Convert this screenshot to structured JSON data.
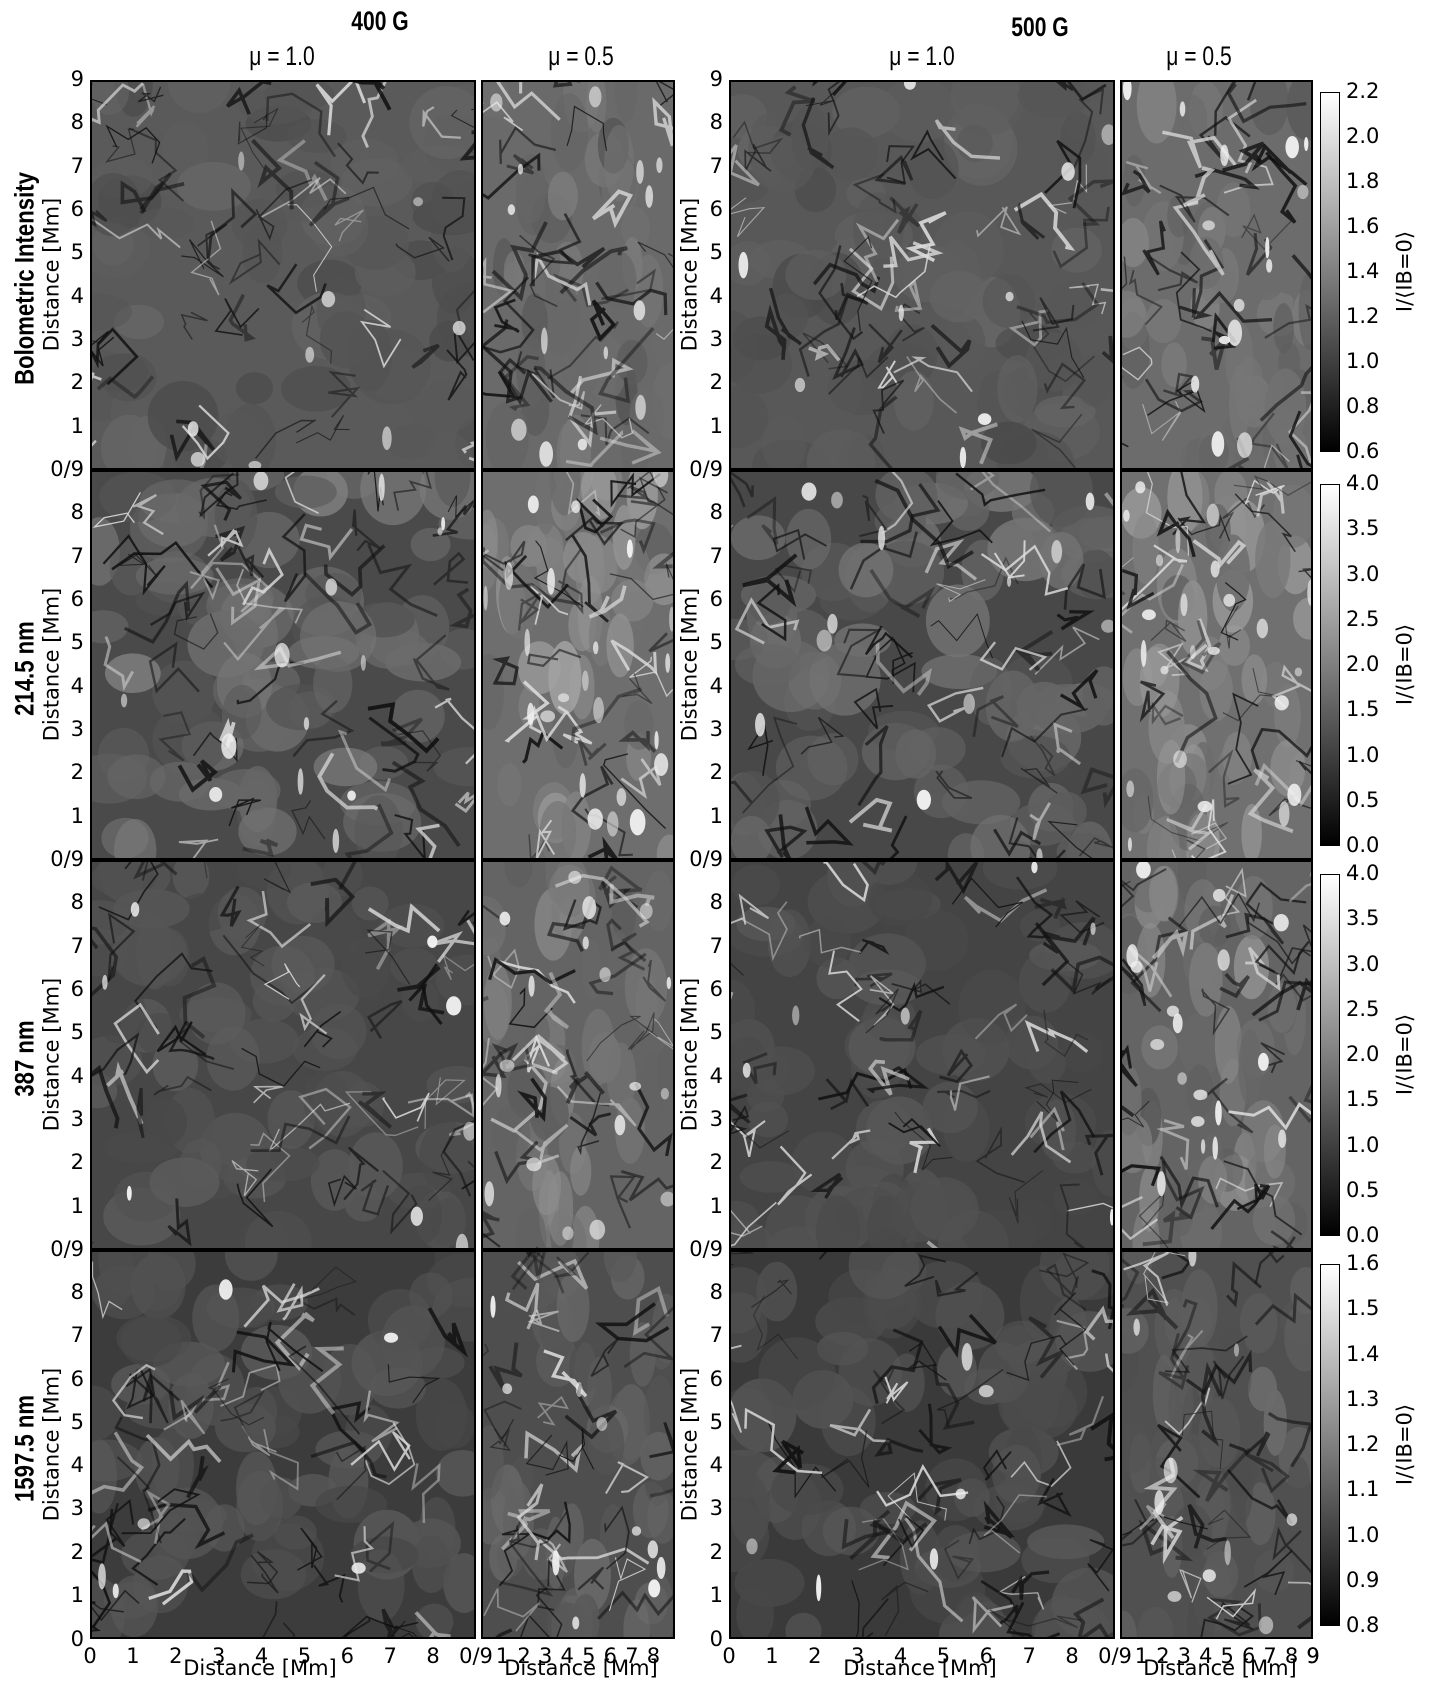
{
  "headers": {
    "group_400": "400 G",
    "group_500": "500 G",
    "mu_10": "μ = 1.0",
    "mu_05": "μ = 0.5"
  },
  "rows": [
    {
      "label": "Bolometric Intensity"
    },
    {
      "label": "214.5 nm"
    },
    {
      "label": "387 nm"
    },
    {
      "label": "1597.5 nm"
    }
  ],
  "axes": {
    "ylabel": "Distance [Mm]",
    "xlabel": "Distance [Mm]",
    "wide_x_ticks": [
      "0",
      "1",
      "2",
      "3",
      "4",
      "5",
      "6",
      "7",
      "8",
      "0/9"
    ],
    "narrow_x_ticks": [
      "1",
      "2",
      "3",
      "4",
      "5",
      "6",
      "7",
      "8",
      "9"
    ],
    "y_ticks_top": [
      "1",
      "2",
      "3",
      "4",
      "5",
      "6",
      "7",
      "8",
      "9"
    ],
    "y_ticks": [
      "1",
      "2",
      "3",
      "4",
      "5",
      "6",
      "7",
      "8"
    ],
    "corner_label": "0/9",
    "origin_label": "0",
    "far_right_tick": "9"
  },
  "colorbars": [
    {
      "label": "I/⟨IB=0⟩",
      "ticks": [
        "0.6",
        "0.8",
        "1.0",
        "1.2",
        "1.4",
        "1.6",
        "1.8",
        "2.0",
        "2.2"
      ],
      "range": [
        0.6,
        2.2
      ]
    },
    {
      "label": "I/⟨IB=0⟩",
      "ticks": [
        "0.0",
        "0.5",
        "1.0",
        "1.5",
        "2.0",
        "2.5",
        "3.0",
        "3.5",
        "4.0"
      ],
      "range": [
        0.0,
        4.0
      ]
    },
    {
      "label": "I/⟨IB=0⟩",
      "ticks": [
        "0.0",
        "0.5",
        "1.0",
        "1.5",
        "2.0",
        "2.5",
        "3.0",
        "3.5",
        "4.0"
      ],
      "range": [
        0.0,
        4.0
      ]
    },
    {
      "label": "I/⟨IB=0⟩",
      "ticks": [
        "0.8",
        "0.9",
        "1.0",
        "1.1",
        "1.2",
        "1.3",
        "1.4",
        "1.5",
        "1.6"
      ],
      "range": [
        0.8,
        1.6
      ]
    }
  ],
  "colormap": {
    "low": "#000000",
    "high": "#ffffff"
  },
  "panels": [
    {
      "row": 0,
      "field": "400 G",
      "mu": "1.0",
      "tone": "#5a5a5a",
      "bright": 0.35
    },
    {
      "row": 0,
      "field": "400 G",
      "mu": "0.5",
      "tone": "#6a6a6a",
      "bright": 0.55
    },
    {
      "row": 0,
      "field": "500 G",
      "mu": "1.0",
      "tone": "#585858",
      "bright": 0.35
    },
    {
      "row": 0,
      "field": "500 G",
      "mu": "0.5",
      "tone": "#6c6c6c",
      "bright": 0.6
    },
    {
      "row": 1,
      "field": "400 G",
      "mu": "1.0",
      "tone": "#4a4a4a",
      "bright": 0.55
    },
    {
      "row": 1,
      "field": "400 G",
      "mu": "0.5",
      "tone": "#6e6e6e",
      "bright": 0.9
    },
    {
      "row": 1,
      "field": "500 G",
      "mu": "1.0",
      "tone": "#484848",
      "bright": 0.5
    },
    {
      "row": 1,
      "field": "500 G",
      "mu": "0.5",
      "tone": "#707070",
      "bright": 0.9
    },
    {
      "row": 2,
      "field": "400 G",
      "mu": "1.0",
      "tone": "#474747",
      "bright": 0.3
    },
    {
      "row": 2,
      "field": "400 G",
      "mu": "0.5",
      "tone": "#646464",
      "bright": 0.7
    },
    {
      "row": 2,
      "field": "500 G",
      "mu": "1.0",
      "tone": "#444444",
      "bright": 0.25
    },
    {
      "row": 2,
      "field": "500 G",
      "mu": "0.5",
      "tone": "#646464",
      "bright": 0.7
    },
    {
      "row": 3,
      "field": "400 G",
      "mu": "1.0",
      "tone": "#3c3c3c",
      "bright": 0.25
    },
    {
      "row": 3,
      "field": "400 G",
      "mu": "0.5",
      "tone": "#4e4e4e",
      "bright": 0.4
    },
    {
      "row": 3,
      "field": "500 G",
      "mu": "1.0",
      "tone": "#3a3a3a",
      "bright": 0.25
    },
    {
      "row": 3,
      "field": "500 G",
      "mu": "0.5",
      "tone": "#505050",
      "bright": 0.4
    }
  ]
}
